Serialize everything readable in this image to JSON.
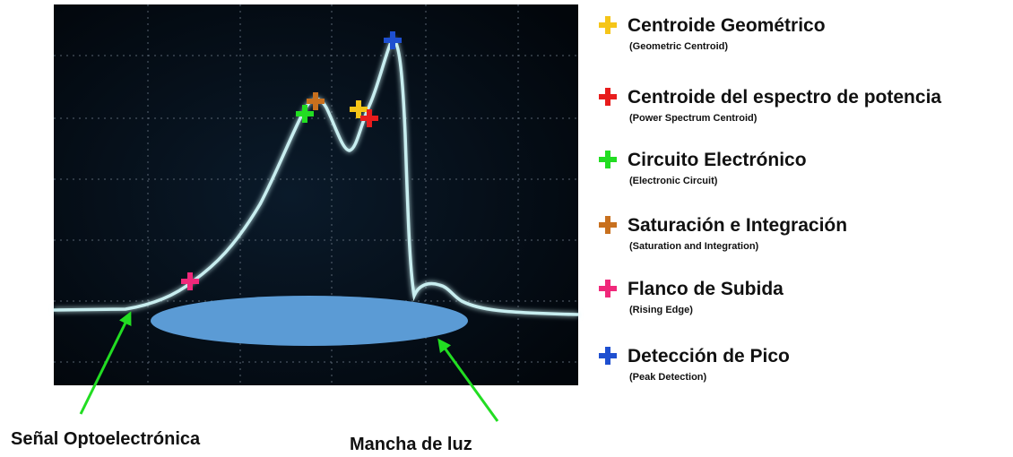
{
  "legend": {
    "items": [
      {
        "label": "Centroide Geométrico",
        "sublabel": "(Geometric Centroid)"
      },
      {
        "label": "Centroide del espectro de potencia",
        "sublabel": "(Power Spectrum Centroid)"
      },
      {
        "label": "Circuito Electrónico",
        "sublabel": "(Electronic Circuit)"
      },
      {
        "label": "Saturación e Integración",
        "sublabel": "(Saturation and Integration)"
      },
      {
        "label": "Flanco de Subida",
        "sublabel": "(Rising Edge)"
      },
      {
        "label": "Detección de Pico",
        "sublabel": "(Peak Detection)"
      }
    ]
  },
  "annotations": {
    "signal": "Señal Optoelectrónica",
    "spot": "Mancha de luz"
  }
}
